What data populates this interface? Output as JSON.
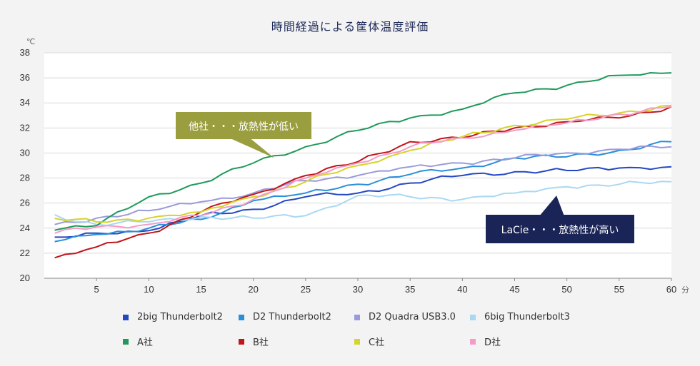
{
  "chart_data": {
    "type": "line",
    "title": "時間経過による筐体温度評価",
    "xlabel": "分",
    "ylabel": "℃",
    "xlim": [
      0,
      60
    ],
    "ylim": [
      20,
      38
    ],
    "xticks": [
      5,
      10,
      15,
      20,
      25,
      30,
      35,
      40,
      45,
      50,
      55,
      60
    ],
    "yticks": [
      20,
      22,
      24,
      26,
      28,
      30,
      32,
      34,
      36,
      38
    ],
    "grid": true,
    "x": [
      0,
      5,
      10,
      15,
      20,
      25,
      30,
      35,
      40,
      45,
      50,
      55,
      60
    ],
    "series": [
      {
        "name": "2big Thunderbolt2",
        "color": "#2448c4",
        "values": [
          23.0,
          23.6,
          23.8,
          25.0,
          25.5,
          26.5,
          26.8,
          27.6,
          28.2,
          28.5,
          28.6,
          28.8,
          28.9
        ]
      },
      {
        "name": "D2 Thunderbolt2",
        "color": "#2a8fd9",
        "values": [
          22.8,
          23.5,
          24.0,
          24.7,
          26.2,
          26.8,
          27.5,
          28.3,
          28.8,
          29.6,
          29.7,
          30.2,
          30.9
        ]
      },
      {
        "name": "D2 Quadra USB3.0",
        "color": "#9a9bdb",
        "values": [
          24.1,
          24.8,
          25.4,
          26.1,
          26.8,
          27.8,
          28.2,
          28.9,
          29.2,
          29.6,
          30.0,
          30.3,
          30.5
        ]
      },
      {
        "name": "6big Thunderbolt3",
        "color": "#a9d8f3",
        "values": [
          25.2,
          24.3,
          24.5,
          24.9,
          24.8,
          25.0,
          26.6,
          26.5,
          26.3,
          26.8,
          27.3,
          27.5,
          27.7
        ]
      },
      {
        "name": "A社",
        "color": "#1f9a5a",
        "values": [
          24.0,
          24.2,
          26.5,
          27.6,
          29.2,
          30.5,
          31.8,
          32.8,
          33.5,
          34.8,
          35.4,
          36.2,
          36.4
        ]
      },
      {
        "name": "B社",
        "color": "#c2151b",
        "values": [
          21.4,
          22.5,
          23.6,
          25.3,
          26.7,
          28.2,
          29.3,
          30.9,
          31.2,
          32.0,
          32.5,
          32.8,
          33.7
        ]
      },
      {
        "name": "C社",
        "color": "#d5d42a",
        "values": [
          24.8,
          24.5,
          24.8,
          25.3,
          26.5,
          27.7,
          29.0,
          30.2,
          31.3,
          32.2,
          32.7,
          33.2,
          33.8
        ]
      },
      {
        "name": "D社",
        "color": "#f49cc8",
        "values": [
          23.5,
          24.1,
          24.3,
          25.0,
          26.3,
          28.0,
          29.2,
          30.5,
          31.2,
          31.8,
          32.4,
          33.1,
          33.7
        ]
      }
    ],
    "annotations": [
      {
        "text": "他社・・・放熱性が低い",
        "color": "#9b9e3f",
        "target_x": 22,
        "target_y": 29.6
      },
      {
        "text": "LaCie・・・放熱性が高い",
        "color": "#1a2456",
        "target_x": 49,
        "target_y": 26.6
      }
    ]
  }
}
